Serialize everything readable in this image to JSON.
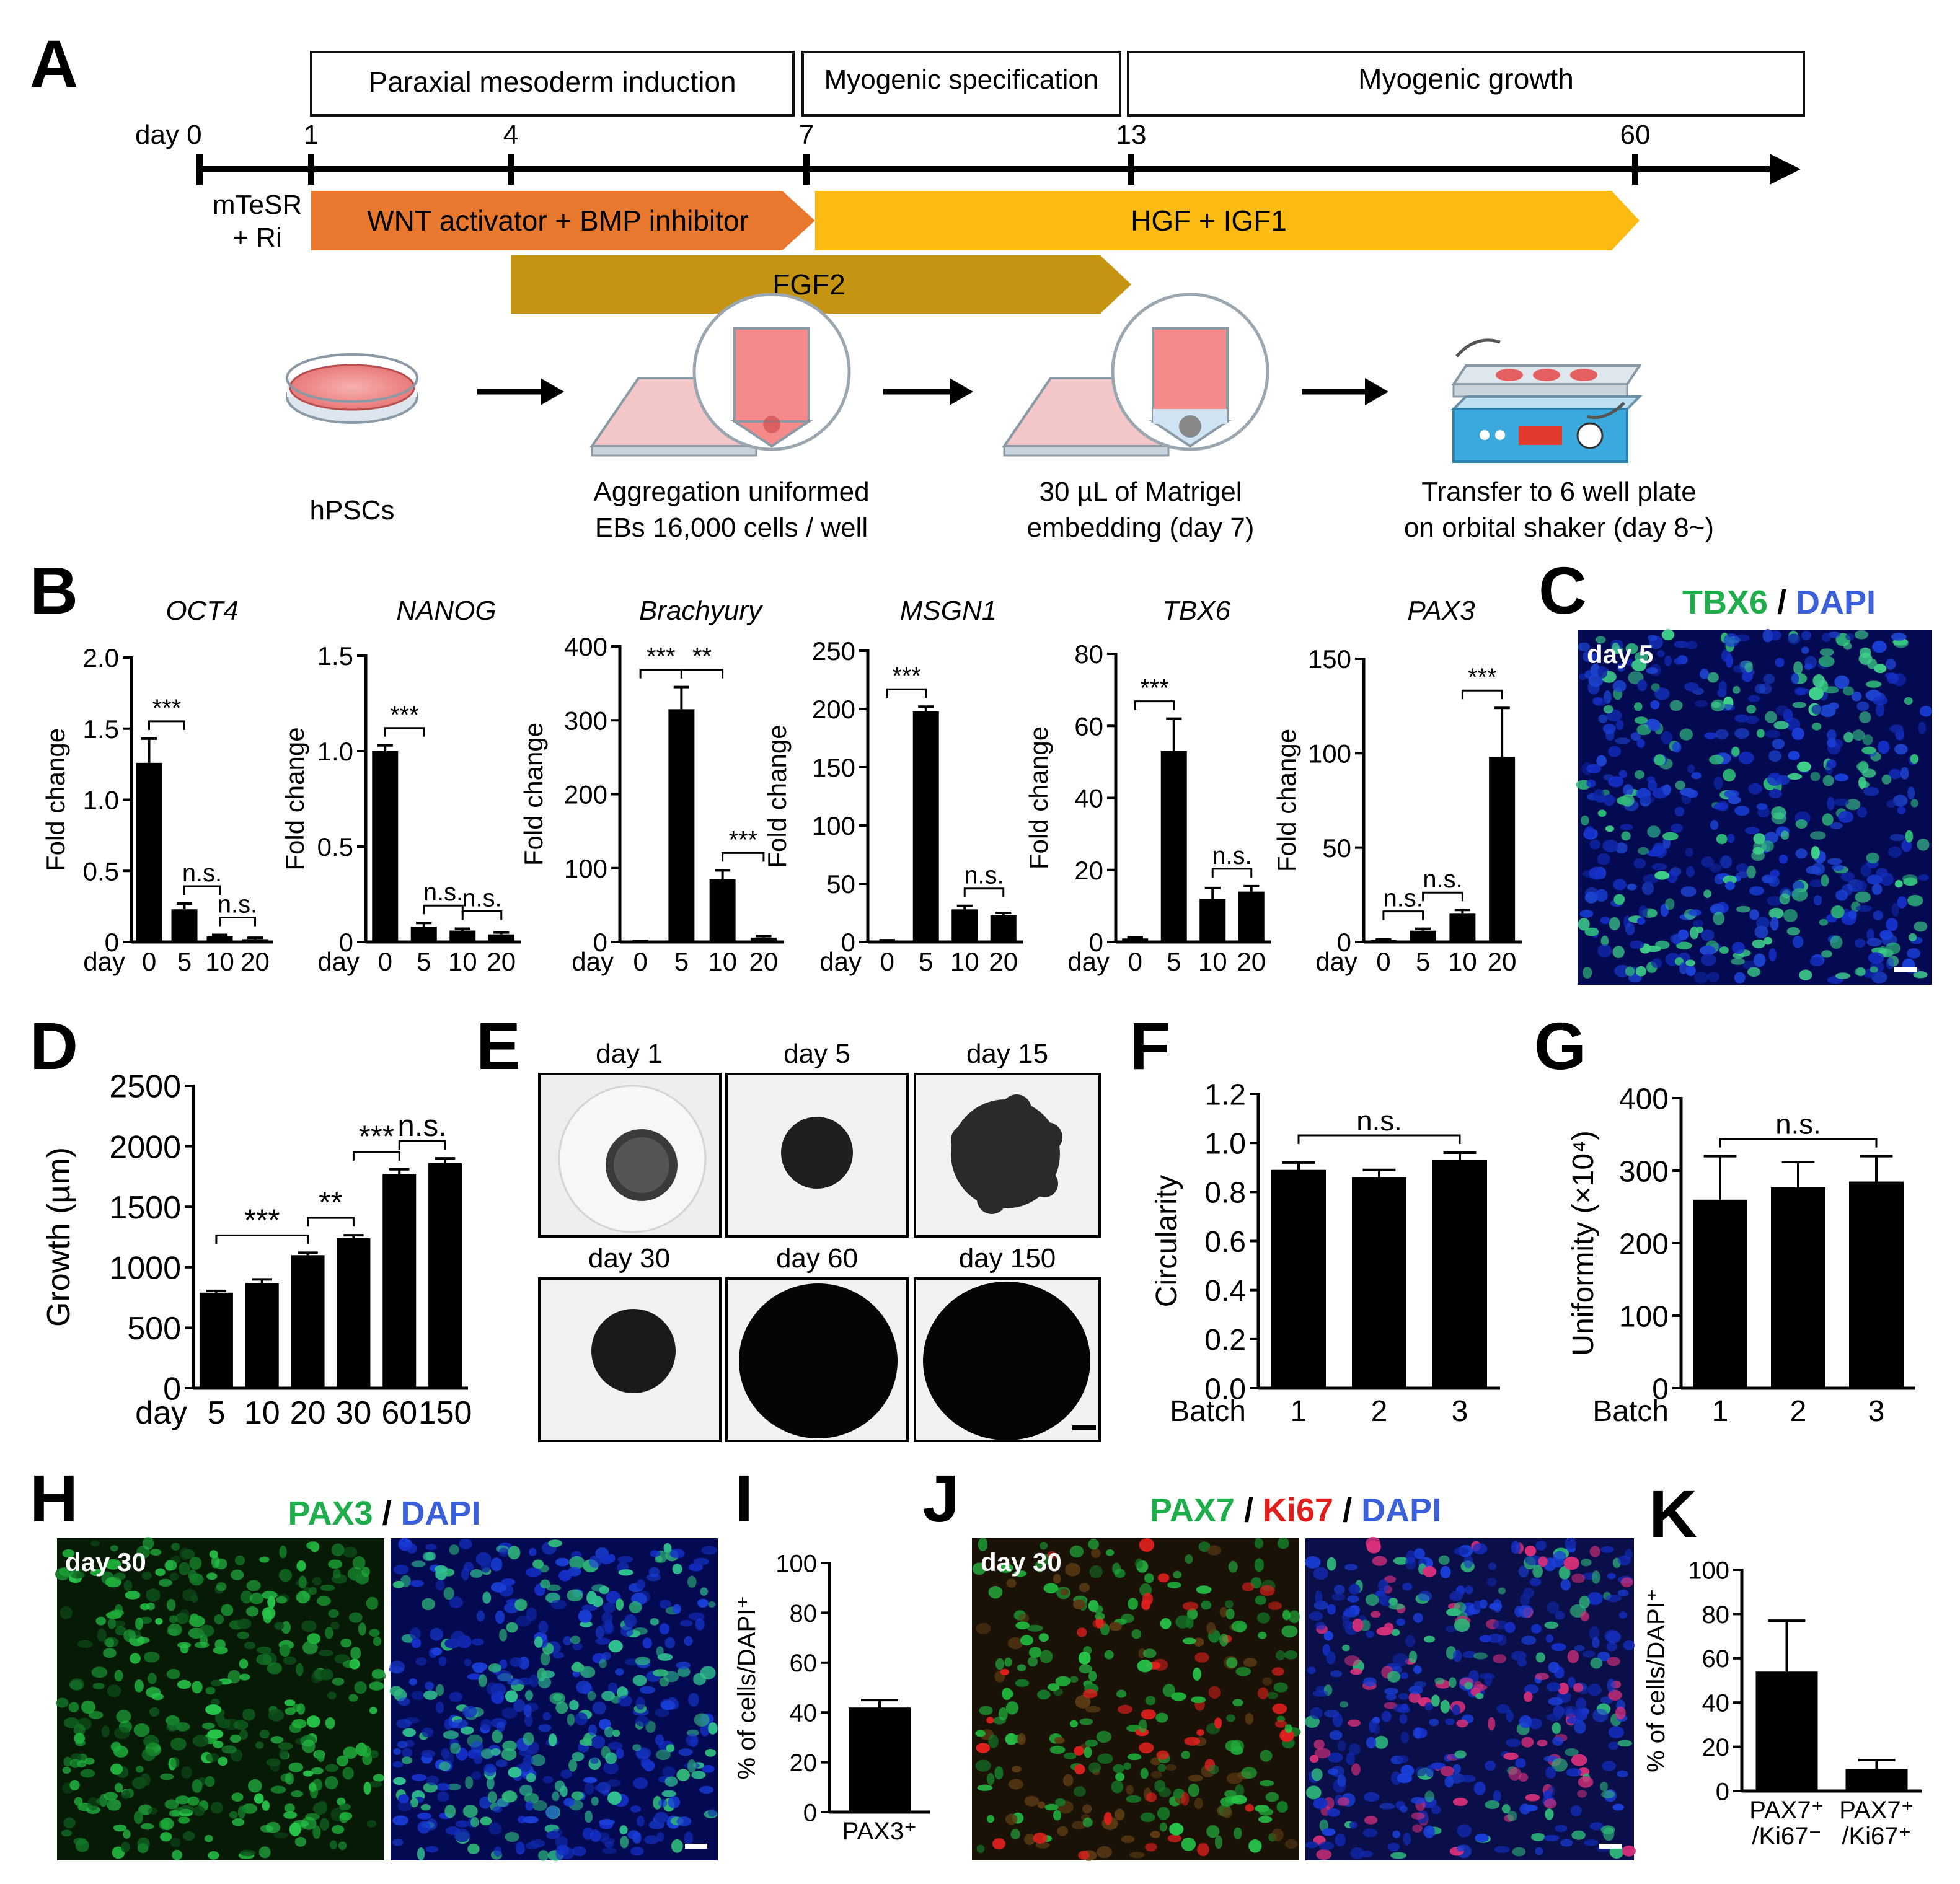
{
  "panels": {
    "A": "A",
    "B": "B",
    "C": "C",
    "D": "D",
    "E": "E",
    "F": "F",
    "G": "G",
    "H": "H",
    "I": "I",
    "J": "J",
    "K": "K"
  },
  "timeline": {
    "phases": [
      "Paraxial mesoderm induction",
      "Myogenic specification",
      "Myogenic growth"
    ],
    "day_prefix": "day 0",
    "days": [
      "1",
      "4",
      "7",
      "13",
      "60"
    ],
    "start_medium": [
      "mTeSR",
      "+ Ri"
    ],
    "arrows": {
      "wnt": "WNT activator + BMP inhibitor",
      "hgf": "HGF + IGF1",
      "fgf": "FGF2"
    },
    "colors": {
      "wnt": "#e8782e",
      "hgf": "#fbbb12",
      "fgf": "#c59412"
    },
    "steps": [
      {
        "lines": [
          "hPSCs"
        ]
      },
      {
        "lines": [
          "Aggregation uniformed",
          "EBs 16,000 cells / well"
        ]
      },
      {
        "lines": [
          "30 µL of Matrigel",
          "embedding (day 7)"
        ]
      },
      {
        "lines": [
          "Transfer to 6 well plate",
          "on orbital shaker (day 8~)"
        ]
      }
    ]
  },
  "panel_C": {
    "title_green": "TBX6",
    "sep": " / ",
    "title_blue": "DAPI",
    "day": "day 5"
  },
  "panel_E": {
    "labels": [
      "day 1",
      "day 5",
      "day 15",
      "day 30",
      "day 60",
      "day 150"
    ]
  },
  "panel_H": {
    "title_green": "PAX3",
    "sep": " / ",
    "title_blue": "DAPI",
    "day": "day 30"
  },
  "panel_J": {
    "title_green": "PAX7",
    "sep": " / ",
    "title_red": "Ki67",
    "title_blue": "DAPI",
    "day": "day 30"
  },
  "chart_data": [
    {
      "id": "B-OCT4",
      "type": "bar",
      "title": "OCT4",
      "ylabel": "Fold change",
      "xlabel": "day",
      "categories": [
        "0",
        "5",
        "10",
        "20"
      ],
      "values": [
        1.26,
        0.23,
        0.04,
        0.02
      ],
      "errors": [
        0.17,
        0.04,
        0.01,
        0.01
      ],
      "ylim": [
        0,
        2.0
      ],
      "yticks": [
        "0",
        "0.5",
        "1.0",
        "1.5",
        "2.0"
      ],
      "annotations": [
        {
          "a": 0,
          "b": 1,
          "text": "***"
        },
        {
          "a": 1,
          "b": 2,
          "text": "n.s."
        },
        {
          "a": 2,
          "b": 3,
          "text": "n.s."
        }
      ]
    },
    {
      "id": "B-NANOG",
      "type": "bar",
      "title": "NANOG",
      "ylabel": "Fold change",
      "xlabel": "day",
      "categories": [
        "0",
        "5",
        "10",
        "20"
      ],
      "values": [
        1.0,
        0.08,
        0.06,
        0.04
      ],
      "errors": [
        0.03,
        0.02,
        0.01,
        0.01
      ],
      "ylim": [
        0,
        1.5
      ],
      "yticks": [
        "0",
        "0.5",
        "1.0",
        "1.5"
      ],
      "annotations": [
        {
          "a": 0,
          "b": 1,
          "text": "***"
        },
        {
          "a": 1,
          "b": 2,
          "text": "n.s."
        },
        {
          "a": 2,
          "b": 3,
          "text": "n.s."
        }
      ]
    },
    {
      "id": "B-Brachyury",
      "type": "bar",
      "title": "Brachyury",
      "ylabel": "Fold change",
      "xlabel": "day",
      "categories": [
        "0",
        "5",
        "10",
        "20"
      ],
      "values": [
        1,
        315,
        85,
        6
      ],
      "errors": [
        0.5,
        30,
        12,
        2
      ],
      "ylim": [
        0,
        400
      ],
      "yticks": [
        "0",
        "100",
        "200",
        "300",
        "400"
      ],
      "annotations": [
        {
          "a": 0,
          "b": 1,
          "text": "***"
        },
        {
          "a": 1,
          "b": 2,
          "text": "**"
        },
        {
          "a": 2,
          "b": 3,
          "text": "***"
        }
      ]
    },
    {
      "id": "B-MSGN1",
      "type": "bar",
      "title": "MSGN1",
      "ylabel": "Fold change",
      "xlabel": "day",
      "categories": [
        "0",
        "5",
        "10",
        "20"
      ],
      "values": [
        1,
        198,
        28,
        23
      ],
      "errors": [
        0.5,
        4,
        3,
        2
      ],
      "ylim": [
        0,
        250
      ],
      "yticks": [
        "0",
        "50",
        "100",
        "150",
        "200",
        "250"
      ],
      "annotations": [
        {
          "a": 0,
          "b": 1,
          "text": "***"
        },
        {
          "a": 2,
          "b": 3,
          "text": "n.s."
        }
      ]
    },
    {
      "id": "B-TBX6",
      "type": "bar",
      "title": "TBX6",
      "ylabel": "Fold change",
      "xlabel": "day",
      "categories": [
        "0",
        "5",
        "10",
        "20"
      ],
      "values": [
        1,
        53,
        12,
        14
      ],
      "errors": [
        0.3,
        9,
        3,
        1.5
      ],
      "ylim": [
        0,
        80
      ],
      "yticks": [
        "0",
        "20",
        "40",
        "60",
        "80"
      ],
      "annotations": [
        {
          "a": 0,
          "b": 1,
          "text": "***"
        },
        {
          "a": 2,
          "b": 3,
          "text": "n.s."
        }
      ]
    },
    {
      "id": "B-PAX3",
      "type": "bar",
      "title": "PAX3",
      "ylabel": "Fold change",
      "xlabel": "day",
      "categories": [
        "0",
        "5",
        "10",
        "20"
      ],
      "values": [
        1,
        6,
        15,
        98
      ],
      "errors": [
        0.3,
        1,
        2,
        26
      ],
      "ylim": [
        0,
        150
      ],
      "yticks": [
        "0",
        "50",
        "100",
        "150"
      ],
      "annotations": [
        {
          "a": 0,
          "b": 1,
          "text": "n.s."
        },
        {
          "a": 1,
          "b": 2,
          "text": "n.s."
        },
        {
          "a": 2,
          "b": 3,
          "text": "***"
        }
      ]
    },
    {
      "id": "D",
      "type": "bar",
      "title": "",
      "ylabel": "Growth (µm)",
      "xlabel": "day",
      "categories": [
        "5",
        "10",
        "20",
        "30",
        "60",
        "150"
      ],
      "values": [
        790,
        870,
        1100,
        1240,
        1770,
        1860
      ],
      "errors": [
        15,
        30,
        20,
        25,
        40,
        40
      ],
      "ylim": [
        0,
        2500
      ],
      "yticks": [
        "0",
        "500",
        "1000",
        "1500",
        "2000",
        "2500"
      ],
      "annotations": [
        {
          "a": 0,
          "b": 2,
          "text": "***"
        },
        {
          "a": 2,
          "b": 3,
          "text": "**"
        },
        {
          "a": 3,
          "b": 4,
          "text": "***"
        },
        {
          "a": 4,
          "b": 5,
          "text": "n.s."
        }
      ]
    },
    {
      "id": "F",
      "type": "bar",
      "title": "",
      "ylabel": "Circularity",
      "xlabel": "Batch",
      "categories": [
        "1",
        "2",
        "3"
      ],
      "values": [
        0.89,
        0.86,
        0.93
      ],
      "errors": [
        0.03,
        0.03,
        0.03
      ],
      "ylim": [
        0,
        1.2
      ],
      "yticks": [
        "0.0",
        "0.2",
        "0.4",
        "0.6",
        "0.8",
        "1.0",
        "1.2"
      ],
      "annotations": [
        {
          "a": 0,
          "b": 2,
          "text": "n.s."
        }
      ]
    },
    {
      "id": "G",
      "type": "bar",
      "title": "",
      "ylabel": "Uniformity (×10⁴)",
      "xlabel": "Batch",
      "categories": [
        "1",
        "2",
        "3"
      ],
      "values": [
        260,
        277,
        285
      ],
      "errors": [
        60,
        35,
        35
      ],
      "ylim": [
        0,
        400
      ],
      "yticks": [
        "0",
        "100",
        "200",
        "300",
        "400"
      ],
      "annotations": [
        {
          "a": 0,
          "b": 2,
          "text": "n.s."
        }
      ]
    },
    {
      "id": "I",
      "type": "bar",
      "title": "",
      "ylabel": "% of cells/DAPI⁺",
      "xlabel": "",
      "categories": [
        "PAX3⁺"
      ],
      "values": [
        42
      ],
      "errors": [
        3
      ],
      "ylim": [
        0,
        100
      ],
      "yticks": [
        "0",
        "20",
        "40",
        "60",
        "80",
        "100"
      ],
      "annotations": []
    },
    {
      "id": "K",
      "type": "bar",
      "title": "",
      "ylabel": "% of cells/DAPI⁺",
      "xlabel": "",
      "categories": [
        "PAX7⁺|/Ki67⁻",
        "PAX7⁺|/Ki67⁺"
      ],
      "values": [
        54,
        10
      ],
      "errors": [
        23,
        4
      ],
      "ylim": [
        0,
        100
      ],
      "yticks": [
        "0",
        "20",
        "40",
        "60",
        "80",
        "100"
      ],
      "annotations": []
    }
  ]
}
